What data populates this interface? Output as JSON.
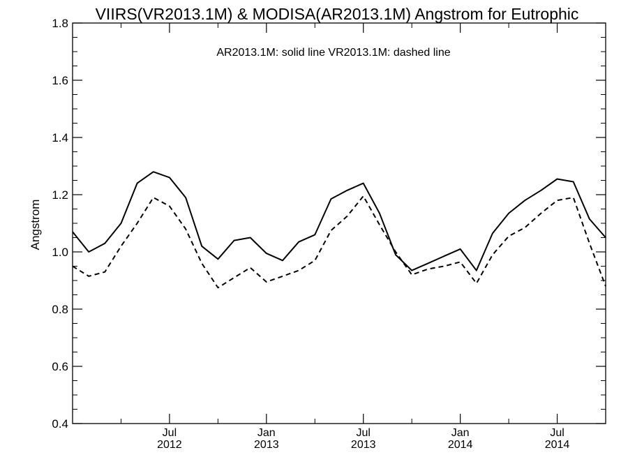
{
  "chart_data": {
    "type": "line",
    "title": "VIIRS(VR2013.1M) & MODISA(AR2013.1M)  Angstrom for Eutrophic",
    "annotation": "AR2013.1M: solid line   VR2013.1M: dashed line",
    "xlabel": "",
    "ylabel": "Angstrom",
    "ylim": [
      0.4,
      1.8
    ],
    "y_ticks": [
      "0.4",
      "0.6",
      "0.8",
      "1.0",
      "1.2",
      "1.4",
      "1.6",
      "1.8"
    ],
    "x_ticks": [
      {
        "month": "Jul",
        "year": "2012"
      },
      {
        "month": "Jan",
        "year": "2013"
      },
      {
        "month": "Jul",
        "year": "2013"
      },
      {
        "month": "Jan",
        "year": "2014"
      },
      {
        "month": "Jul",
        "year": "2014"
      }
    ],
    "x": [
      "2012-01",
      "2012-02",
      "2012-03",
      "2012-04",
      "2012-05",
      "2012-06",
      "2012-07",
      "2012-08",
      "2012-09",
      "2012-10",
      "2012-11",
      "2012-12",
      "2013-01",
      "2013-02",
      "2013-03",
      "2013-04",
      "2013-05",
      "2013-06",
      "2013-07",
      "2013-08",
      "2013-09",
      "2013-10",
      "2013-11",
      "2013-12",
      "2014-01",
      "2014-02",
      "2014-03",
      "2014-04",
      "2014-05",
      "2014-06",
      "2014-07",
      "2014-08",
      "2014-09",
      "2014-10"
    ],
    "series": [
      {
        "name": "AR2013.1M",
        "style": "solid",
        "values": [
          1.07,
          1.0,
          1.03,
          1.1,
          1.24,
          1.28,
          1.26,
          1.19,
          1.02,
          0.975,
          1.04,
          1.05,
          0.995,
          0.97,
          1.035,
          1.06,
          1.185,
          1.215,
          1.24,
          1.135,
          0.99,
          0.935,
          0.96,
          0.985,
          1.01,
          0.935,
          1.065,
          1.135,
          1.18,
          1.215,
          1.255,
          1.245,
          1.115,
          1.05
        ]
      },
      {
        "name": "VR2013.1M",
        "style": "dashed",
        "values": [
          0.95,
          0.915,
          0.93,
          1.02,
          1.1,
          1.19,
          1.16,
          1.08,
          0.96,
          0.875,
          0.91,
          0.945,
          0.895,
          0.915,
          0.935,
          0.97,
          1.075,
          1.125,
          1.195,
          1.095,
          1.0,
          0.92,
          0.94,
          0.95,
          0.965,
          0.89,
          0.99,
          1.055,
          1.085,
          1.135,
          1.18,
          1.19,
          1.03,
          0.88
        ]
      }
    ],
    "colors": {
      "line": "#000000",
      "background": "#ffffff"
    }
  }
}
